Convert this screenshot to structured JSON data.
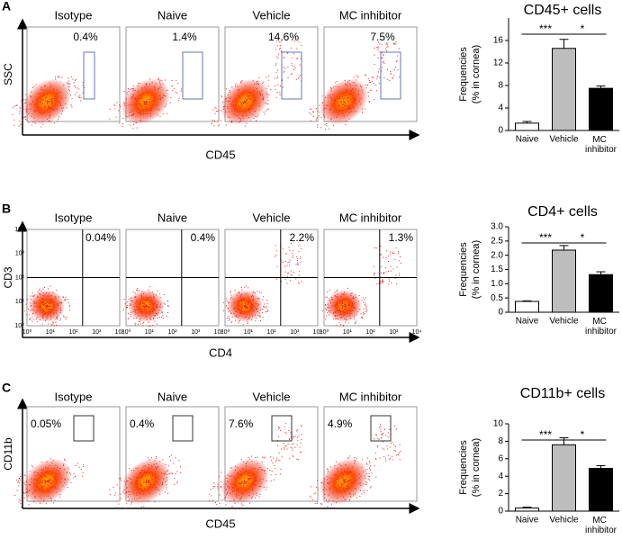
{
  "panels": [
    {
      "letter": "A",
      "x_label": "CD45",
      "y_label": "SSC",
      "plots": [
        {
          "label": "Isotype",
          "percent": "0.4%"
        },
        {
          "label": "Naive",
          "percent": "1.4%"
        },
        {
          "label": "Vehicle",
          "percent": "14.6%"
        },
        {
          "label": "MC inhibitor",
          "percent": "7.5%"
        }
      ]
    },
    {
      "letter": "B",
      "x_label": "CD4",
      "y_label": "CD3",
      "flow_ticks": [
        "10⁰",
        "10¹",
        "10²",
        "10³",
        "10⁴"
      ],
      "plots": [
        {
          "label": "Isotype",
          "percent": "0.04%"
        },
        {
          "label": "Naive",
          "percent": "0.4%"
        },
        {
          "label": "Vehicle",
          "percent": "2.2%"
        },
        {
          "label": "MC inhibitor",
          "percent": "1.3%"
        }
      ]
    },
    {
      "letter": "C",
      "x_label": "CD45",
      "y_label": "CD11b",
      "plots": [
        {
          "label": "Isotype",
          "percent": "0.05%"
        },
        {
          "label": "Naive",
          "percent": "0.4%"
        },
        {
          "label": "Vehicle",
          "percent": "7.6%"
        },
        {
          "label": "MC inhibitor",
          "percent": "4.9%"
        }
      ]
    }
  ],
  "chart_data": [
    {
      "type": "bar",
      "title": "CD45+ cells",
      "y_label": [
        "Frequencies",
        "(% in cornea)"
      ],
      "categories": [
        "Naive",
        "Vehicle",
        "MC inhibitor"
      ],
      "values": [
        1.3,
        14.6,
        7.5
      ],
      "errors": [
        0.3,
        1.6,
        0.4
      ],
      "colors": [
        "#ffffff",
        "#bdbdbd",
        "#000000"
      ],
      "ylim": [
        0,
        20
      ],
      "yticks": [
        0,
        4,
        8,
        12,
        16
      ],
      "annotations": [
        "***",
        "*"
      ]
    },
    {
      "type": "bar",
      "title": "CD4+ cells",
      "y_label": [
        "Frequencies",
        "(% in cornea)"
      ],
      "categories": [
        "Naive",
        "Vehicle",
        "MC inhibitor"
      ],
      "values": [
        0.38,
        2.18,
        1.32
      ],
      "errors": [
        0.02,
        0.16,
        0.1
      ],
      "colors": [
        "#ffffff",
        "#bdbdbd",
        "#000000"
      ],
      "ylim": [
        0,
        3
      ],
      "yticks": [
        0,
        {
          "value": 0.5,
          "label": "0.5"
        },
        {
          "value": 1,
          "label": "1.0"
        },
        {
          "value": 1.5,
          "label": "1.5"
        },
        {
          "value": 2,
          "label": "2.0"
        },
        {
          "value": 2.5,
          "label": "2.5"
        },
        {
          "value": 3,
          "label": "3.0"
        }
      ],
      "annotations": [
        "***",
        "*"
      ]
    },
    {
      "type": "bar",
      "title": "CD11b+ cells",
      "y_label": [
        "Frequencies",
        "(% in cornea)"
      ],
      "categories": [
        "Naive",
        "Vehicle",
        "MC inhibitor"
      ],
      "values": [
        0.35,
        7.6,
        4.9
      ],
      "errors": [
        0.1,
        0.8,
        0.3
      ],
      "colors": [
        "#ffffff",
        "#bdbdbd",
        "#000000"
      ],
      "ylim": [
        0,
        10
      ],
      "yticks": [
        0,
        2,
        4,
        6,
        8,
        10
      ],
      "annotations": [
        "***",
        "*"
      ]
    }
  ]
}
